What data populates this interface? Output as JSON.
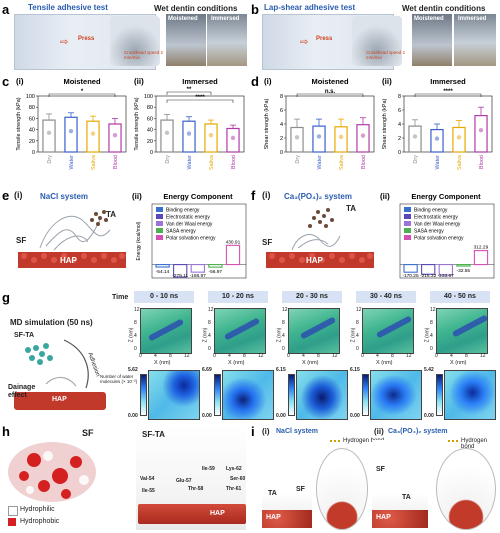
{
  "panel_labels": {
    "a": "a",
    "b": "b",
    "c": "c",
    "d": "d",
    "e": "e",
    "f": "f",
    "g": "g",
    "h": "h",
    "i": "i"
  },
  "a": {
    "title": "Tensile adhesive test",
    "press": "Press",
    "crosshead": "Crosshead speed 2 mm/min",
    "wet": "Wet dentin conditions",
    "moistened": "Moistened",
    "immersed": "Immersed"
  },
  "b": {
    "title": "Lap-shear adhesive test",
    "press": "Press",
    "crosshead": "Crosshead speed 2 mm/min",
    "wet": "Wet dentin conditions",
    "moistened": "Moistened",
    "immersed": "Immersed"
  },
  "colors": {
    "dry": "#8c8c8c",
    "water": "#3a5fcd",
    "saliva": "#e6a800",
    "blood": "#b23aa8"
  },
  "chart_data": [
    {
      "id": "c-i",
      "type": "bar",
      "roman": "(i)",
      "title": "Moistened",
      "ylabel": "Tensile strength (kPa)",
      "ylim": [
        0,
        100
      ],
      "yticks": [
        "0",
        "20",
        "40",
        "60",
        "80",
        "100"
      ],
      "categories": [
        "Dry",
        "Water",
        "Saliva",
        "Blood"
      ],
      "values": [
        57,
        62,
        55,
        50
      ],
      "errors": [
        11,
        8,
        9,
        10
      ],
      "sig": [
        {
          "from": 0,
          "to": 3,
          "text": "*"
        }
      ]
    },
    {
      "id": "c-ii",
      "type": "bar",
      "roman": "(ii)",
      "title": "Immersed",
      "ylabel": "Tensile strength (kPa)",
      "ylim": [
        0,
        100
      ],
      "yticks": [
        "0",
        "20",
        "40",
        "60",
        "80",
        "100"
      ],
      "categories": [
        "Dry",
        "Water",
        "Saliva",
        "Blood"
      ],
      "values": [
        57,
        55,
        50,
        42
      ],
      "errors": [
        10,
        8,
        7,
        6
      ],
      "sig": [
        {
          "from": 0,
          "to": 3,
          "text": "****"
        },
        {
          "from": 0,
          "to": 2,
          "text": "**"
        }
      ]
    },
    {
      "id": "d-i",
      "type": "bar",
      "roman": "(i)",
      "title": "Moistened",
      "ylabel": "Shear strength (kPa)",
      "ylim": [
        0,
        8
      ],
      "yticks": [
        "0",
        "2",
        "4",
        "6",
        "8"
      ],
      "categories": [
        "Dry",
        "Water",
        "Saliva",
        "Blood"
      ],
      "values": [
        3.5,
        3.7,
        3.6,
        3.9
      ],
      "errors": [
        1.2,
        1.0,
        1.1,
        1.0
      ],
      "sig": [
        {
          "from": 0,
          "to": 3,
          "text": "n.s."
        }
      ]
    },
    {
      "id": "d-ii",
      "type": "bar",
      "roman": "(ii)",
      "title": "Immersed",
      "ylabel": "Shear strength (kPa)",
      "ylim": [
        0,
        8
      ],
      "yticks": [
        "0",
        "2",
        "4",
        "6",
        "8"
      ],
      "categories": [
        "Dry",
        "Water",
        "Saliva",
        "Blood"
      ],
      "values": [
        3.7,
        3.2,
        3.5,
        5.2
      ],
      "errors": [
        0.9,
        0.8,
        1.0,
        1.2
      ],
      "sig": [
        {
          "from": 0,
          "to": 3,
          "text": "****"
        }
      ]
    },
    {
      "id": "e-ii",
      "type": "bar",
      "roman": "(ii)",
      "title": "Energy Component",
      "ylabel": "Energy (kcal/mol)",
      "legend": [
        "Binding energy",
        "Electrostatic energy",
        "Van der Waal energy",
        "SASA energy",
        "Polar solvation energy"
      ],
      "colors": [
        "#3a6fd0",
        "#5a49b8",
        "#9b73d9",
        "#4caf50",
        "#d64fb2"
      ],
      "values": [
        -54.14,
        -279.11,
        -168.97,
        -56.97,
        430.91
      ],
      "labels": [
        "-54.14",
        "-279.11",
        "-168.97",
        "-56.97",
        "430.91"
      ],
      "ylim": [
        -300,
        460
      ]
    },
    {
      "id": "f-ii",
      "type": "bar",
      "roman": "(ii)",
      "title": "Energy Component",
      "legend": [
        "Binding energy",
        "Electrostatic energy",
        "Van der Waal energy",
        "SASA energy",
        "Polar solvation energy"
      ],
      "colors": [
        "#3a6fd0",
        "#5a49b8",
        "#9b73d9",
        "#4caf50",
        "#d64fb2"
      ],
      "values": [
        -170.25,
        -216.32,
        -233.67,
        -32.55,
        312.29
      ],
      "labels": [
        "-170.25",
        "-216.32",
        "-233.67",
        "-32.55",
        "312.29"
      ],
      "ylim": [
        -300,
        460
      ]
    }
  ],
  "e": {
    "roman": "(i)",
    "system": "NaCl system",
    "ta": "TA",
    "sf": "SF",
    "hap": "HAP"
  },
  "f": {
    "roman": "(i)",
    "system": "Ca₃(PO₄)₂ system",
    "ta": "TA",
    "sf": "SF",
    "hap": "HAP"
  },
  "g": {
    "md": "MD simulation (50 ns)",
    "sfta": "SF-TA",
    "adhesion": "Adhesion",
    "drainage": "Dainage effect",
    "hap": "HAP",
    "time_label": "Time",
    "windows": [
      "0 - 10 ns",
      "10 - 20 ns",
      "20 - 30 ns",
      "30 - 40 ns",
      "40 - 50 ns"
    ],
    "xlabel": "X (nm)",
    "ylabel": "Z (nm)",
    "xticks": [
      "0",
      "4",
      "8",
      "12"
    ],
    "yticks": [
      "0",
      "4",
      "8",
      "12"
    ],
    "cbar_label": "Number of water molecules (× 10⁻²)",
    "cbar_max": [
      "5.62",
      "6.69",
      "6.15",
      "6.15",
      "5.42"
    ],
    "cbar_min": [
      "0.00",
      "0.00",
      "0.00",
      "0.00",
      "0.00"
    ]
  },
  "h": {
    "sf": "SF",
    "hydrophilic": "Hydrophilic",
    "hydrophobic": "Hydrophobic",
    "sfta": "SF-TA",
    "hap": "HAP",
    "residues": [
      "Ile-59",
      "Lys-62",
      "Val-54",
      "Glu-57",
      "Ser-60",
      "Thr-61",
      "Ile-55",
      "Thr-58"
    ]
  },
  "i": {
    "ni": "(i)",
    "nii": "(ii)",
    "nacl": "NaCl system",
    "ca": "Ca₃(PO₄)₂ system",
    "hbond": "Hydrogen bond",
    "ta": "TA",
    "sf": "SF",
    "hap": "HAP"
  }
}
